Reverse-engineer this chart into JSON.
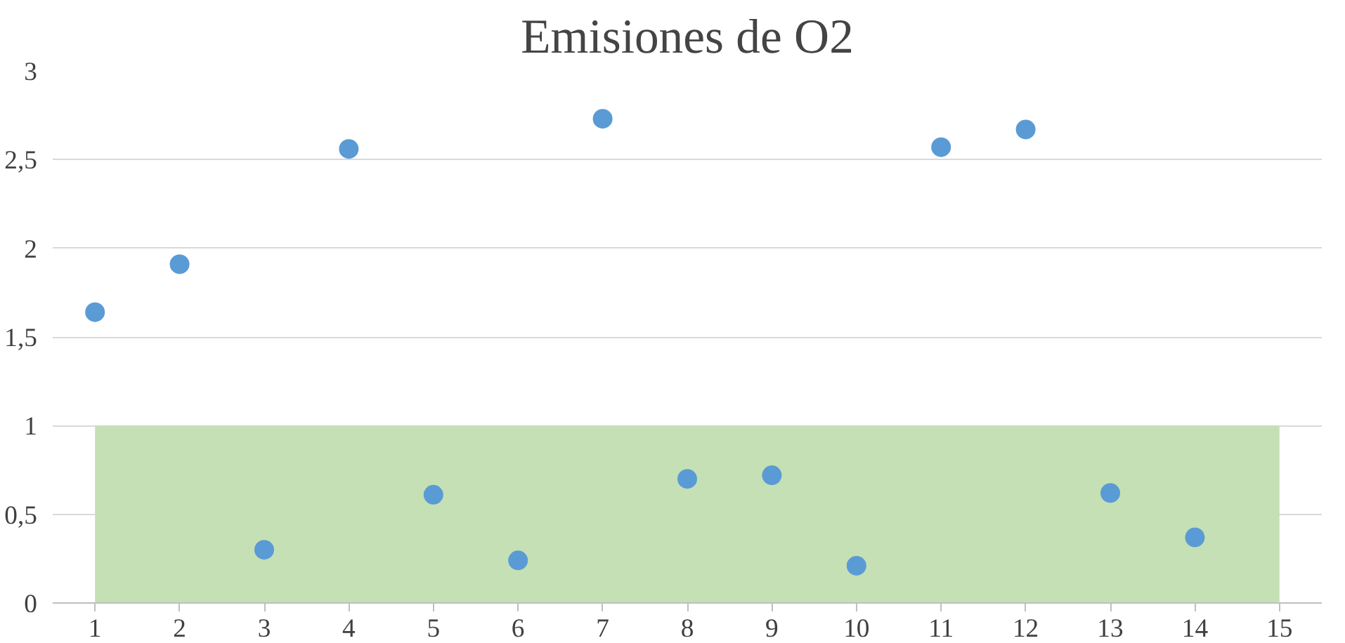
{
  "chart_data": {
    "type": "scatter",
    "title": "Emisiones de O2",
    "x": [
      1,
      2,
      3,
      4,
      5,
      6,
      7,
      8,
      9,
      10,
      11,
      12,
      13,
      14
    ],
    "series": [
      {
        "color": "#5b9bd5",
        "values": [
          1.64,
          1.91,
          0.3,
          2.56,
          0.61,
          0.24,
          2.73,
          0.7,
          0.72,
          0.21,
          2.57,
          2.67,
          0.62,
          0.37
        ]
      }
    ],
    "xlim": [
      0.5,
      15.5
    ],
    "xticks": [
      1,
      2,
      3,
      4,
      5,
      6,
      7,
      8,
      9,
      10,
      11,
      12,
      13,
      14,
      15
    ],
    "ylim": [
      0,
      3
    ],
    "yticks": [
      0,
      {
        "value": 0.5,
        "label": "0,5"
      },
      1,
      {
        "value": 1.5,
        "label": "1,5"
      },
      2,
      {
        "value": 2.5,
        "label": "2,5"
      },
      3
    ],
    "bands": [
      {
        "axis": "y",
        "from": 0,
        "to": 1,
        "color": "#c5e0b4"
      }
    ],
    "grid": "y",
    "marker": "circle"
  }
}
